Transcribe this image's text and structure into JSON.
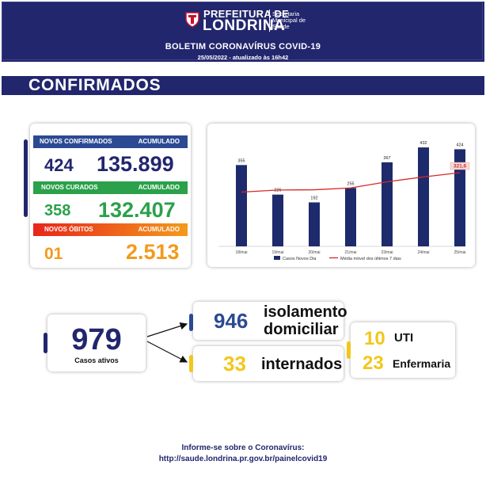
{
  "header": {
    "brand_top": "PREFEITURA DE",
    "brand_main": "LONDRINA",
    "secretaria": [
      "Secretaria",
      "Municipal de",
      "Saúde"
    ],
    "bulletin_title": "BOLETIM CORONAVÍRUS COVID-19",
    "bulletin_date": "25/05/2022 - atualizado às 16h42"
  },
  "section_title": "CONFIRMADOS",
  "stats": {
    "confirmados": {
      "label": "NOVOS CONFIRMADOS",
      "acc_label": "ACUMULADO",
      "new": "424",
      "total": "135.899"
    },
    "curados": {
      "label": "NOVOS CURADOS",
      "acc_label": "ACUMULADO",
      "new": "358",
      "total": "132.407"
    },
    "obitos": {
      "label": "NOVOS ÓBITOS",
      "acc_label": "ACUMULADO",
      "new": "01",
      "total": "2.513"
    }
  },
  "chart_data": {
    "type": "bar",
    "categories": [
      "18/mai",
      "19/mai",
      "20/mai",
      "21/mai",
      "23/mai",
      "24/mai",
      "25/mai"
    ],
    "series": [
      {
        "name": "Casos Novos Dia",
        "type": "bar",
        "values": [
          355,
          226,
          192,
          255,
          367,
          432,
          424
        ]
      },
      {
        "name": "Média móvel dos últimos 7 dias",
        "type": "line",
        "values": [
          237,
          246,
          247,
          255,
          282,
          303,
          321.6
        ]
      }
    ],
    "highlight_label": "321,6",
    "ylim": [
      0,
      460
    ],
    "grid": false,
    "legend": "bottom",
    "colors": {
      "bar": "#1d2a6b",
      "line": "#d42a2a"
    }
  },
  "active": {
    "value": "979",
    "label": "Casos ativos"
  },
  "isolation": {
    "value": "946",
    "line1": "isolamento",
    "line2": "domiciliar"
  },
  "hospitalized": {
    "value": "33",
    "label": "internados"
  },
  "beds": {
    "uti_value": "10",
    "uti_label": "UTI",
    "enf_value": "23",
    "enf_label": "Enfermaria"
  },
  "footer": {
    "line1": "Informe-se sobre o Coronavírus:",
    "line2": "http://saude.londrina.pr.gov.br/painelcovid19"
  },
  "colors": {
    "navy": "#22266d",
    "blue": "#2b4a93",
    "green": "#2aa14a",
    "orange": "#f39a1b",
    "yellow": "#f2c71b"
  }
}
